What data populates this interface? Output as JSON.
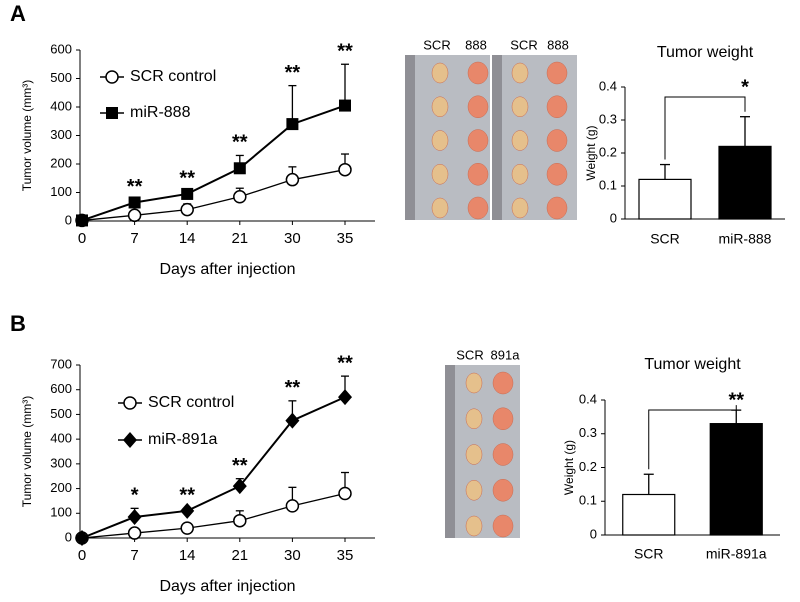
{
  "panels": [
    "A",
    "B"
  ],
  "photos": [
    {
      "labels": [
        "SCR",
        "888",
        "SCR",
        "888"
      ]
    },
    {
      "labels": [
        "SCR",
        "891a"
      ]
    }
  ],
  "chart_data": [
    {
      "type": "line",
      "ylabel": "Tumor volume (mm³)",
      "xlabel": "Days after injection",
      "categories": [
        "0",
        "7",
        "14",
        "21",
        "30",
        "35"
      ],
      "ylim": [
        0,
        600
      ],
      "yticks": [
        0,
        100,
        200,
        300,
        400,
        500,
        600
      ],
      "significance": [
        null,
        "**",
        "**",
        "**",
        "**",
        "**"
      ],
      "series": [
        {
          "name": "SCR control",
          "color": "#000000",
          "marker": "circle-open",
          "values": [
            2,
            20,
            40,
            85,
            145,
            180
          ],
          "errors": [
            2,
            5,
            20,
            30,
            45,
            55
          ]
        },
        {
          "name": "miR-888",
          "color": "#000000",
          "marker": "square",
          "values": [
            2,
            65,
            95,
            185,
            340,
            405
          ],
          "errors": [
            2,
            10,
            10,
            45,
            135,
            145
          ]
        }
      ]
    },
    {
      "type": "bar",
      "title": "Tumor weight",
      "ylabel": "Weight (g)",
      "categories": [
        "SCR",
        "miR-888"
      ],
      "values": [
        0.12,
        0.22
      ],
      "errors": [
        0.045,
        0.09
      ],
      "colors": [
        "#ffffff",
        "#000000"
      ],
      "significance": "*",
      "ylim": [
        0,
        0.4
      ],
      "yticks": [
        0,
        0.1,
        0.2,
        0.3,
        0.4
      ]
    },
    {
      "type": "line",
      "ylabel": "Tumor volume (mm³)",
      "xlabel": "Days after injection",
      "categories": [
        "0",
        "7",
        "14",
        "21",
        "30",
        "35"
      ],
      "ylim": [
        0,
        700
      ],
      "yticks": [
        0,
        100,
        200,
        300,
        400,
        500,
        600,
        700
      ],
      "significance": [
        null,
        "*",
        "**",
        "**",
        "**",
        "**"
      ],
      "series": [
        {
          "name": "SCR control",
          "color": "#000000",
          "marker": "circle-open",
          "values": [
            0,
            20,
            40,
            70,
            130,
            180
          ],
          "errors": [
            2,
            8,
            15,
            40,
            75,
            85
          ]
        },
        {
          "name": "miR-891a",
          "color": "#000000",
          "marker": "diamond",
          "values": [
            0,
            85,
            110,
            210,
            475,
            570
          ],
          "errors": [
            2,
            35,
            10,
            30,
            80,
            85
          ]
        }
      ]
    },
    {
      "type": "bar",
      "title": "Tumor weight",
      "ylabel": "Weight (g)",
      "categories": [
        "SCR",
        "miR-891a"
      ],
      "values": [
        0.12,
        0.33
      ],
      "errors": [
        0.06,
        0.04
      ],
      "colors": [
        "#ffffff",
        "#000000"
      ],
      "significance": "**",
      "ylim": [
        0,
        0.4
      ],
      "yticks": [
        0,
        0.1,
        0.2,
        0.3,
        0.4
      ]
    }
  ]
}
